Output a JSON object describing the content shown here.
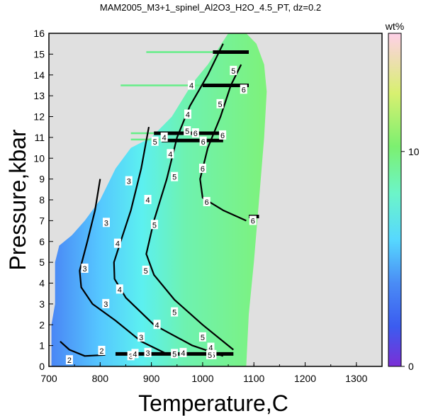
{
  "chart_data": {
    "type": "heatmap",
    "title": "MAM2005_M3+1_spinel_Al2O3_H2O_4.5_PT, dz=0.2",
    "xlabel": "Temperature,C",
    "ylabel": "Pressure,kbar",
    "xlim": [
      700,
      1350
    ],
    "ylim": [
      0,
      16
    ],
    "xticks": [
      700,
      800,
      900,
      1000,
      1100,
      1200,
      1300
    ],
    "yticks": [
      0,
      1,
      2,
      3,
      4,
      5,
      6,
      7,
      8,
      9,
      10,
      11,
      12,
      13,
      14,
      15,
      16
    ],
    "grid": false,
    "background": "#e0e0e0",
    "colorbar": {
      "label": "wt%",
      "min": 0,
      "max": 15.5,
      "ticks": [
        0,
        10
      ],
      "colors": [
        "#7b2fd6",
        "#3b5cf0",
        "#4a8cf5",
        "#56d8ff",
        "#6cf5c8",
        "#7cf070",
        "#d8f070",
        "#ffd0e8"
      ]
    },
    "field_boundary": [
      [
        770,
        0.0
      ],
      [
        1085,
        0.0
      ],
      [
        1090,
        2.5
      ],
      [
        1100,
        5.0
      ],
      [
        1110,
        8.0
      ],
      [
        1120,
        11.0
      ],
      [
        1125,
        13.2
      ],
      [
        1120,
        14.5
      ],
      [
        1105,
        15.5
      ],
      [
        1085,
        16.0
      ],
      [
        1050,
        16.0
      ],
      [
        1010,
        14.5
      ],
      [
        980,
        13.6
      ],
      [
        940,
        12.0
      ],
      [
        900,
        11.0
      ],
      [
        860,
        10.5
      ],
      [
        830,
        9.5
      ],
      [
        800,
        8.0
      ],
      [
        770,
        7.0
      ],
      [
        745,
        6.3
      ],
      [
        720,
        5.8
      ],
      [
        712,
        5.0
      ],
      [
        712,
        3.0
      ],
      [
        705,
        2.0
      ],
      [
        705,
        0.0
      ]
    ],
    "contours": [
      {
        "level": 2,
        "points": [
          [
            722,
            1.2
          ],
          [
            740,
            0.8
          ],
          [
            770,
            0.5
          ],
          [
            810,
            0.55
          ]
        ]
      },
      {
        "level": 3,
        "points": [
          [
            800,
            9.0
          ],
          [
            790,
            7.5
          ],
          [
            775,
            6.0
          ],
          [
            760,
            4.6
          ],
          [
            763,
            3.8
          ],
          [
            785,
            3.0
          ],
          [
            830,
            2.2
          ],
          [
            880,
            1.2
          ],
          [
            930,
            0.6
          ]
        ]
      },
      {
        "level": 4,
        "points": [
          [
            895,
            11.5
          ],
          [
            880,
            9.5
          ],
          [
            860,
            7.5
          ],
          [
            840,
            6.0
          ],
          [
            827,
            5.0
          ],
          [
            828,
            4.2
          ],
          [
            850,
            3.3
          ],
          [
            905,
            2.0
          ],
          [
            980,
            1.0
          ],
          [
            1040,
            0.5
          ]
        ]
      },
      {
        "level": 5,
        "points": [
          [
            1040,
            15.5
          ],
          [
            1010,
            14.0
          ],
          [
            975,
            12.5
          ],
          [
            950,
            11.0
          ],
          [
            930,
            9.0
          ],
          [
            905,
            7.0
          ],
          [
            890,
            5.4
          ],
          [
            905,
            4.4
          ],
          [
            945,
            3.2
          ],
          [
            1000,
            2.0
          ],
          [
            1060,
            0.8
          ]
        ]
      },
      {
        "level": 6,
        "points": [
          [
            1075,
            14.5
          ],
          [
            1055,
            13.5
          ],
          [
            1035,
            12.0
          ],
          [
            1010,
            10.5
          ],
          [
            995,
            9.0
          ],
          [
            1000,
            8.1
          ],
          [
            1040,
            7.5
          ],
          [
            1085,
            7.0
          ]
        ]
      }
    ],
    "contour_labels": [
      {
        "text": "2",
        "x": 740,
        "y": 0.3
      },
      {
        "text": "2",
        "x": 803,
        "y": 0.75
      },
      {
        "text": "3",
        "x": 770,
        "y": 4.7
      },
      {
        "text": "3",
        "x": 812,
        "y": 6.9
      },
      {
        "text": "3",
        "x": 856,
        "y": 8.9
      },
      {
        "text": "3",
        "x": 811,
        "y": 3.0
      },
      {
        "text": "3",
        "x": 880,
        "y": 1.4
      },
      {
        "text": "3",
        "x": 893,
        "y": 0.65
      },
      {
        "text": "3",
        "x": 860,
        "y": 0.5
      },
      {
        "text": "4",
        "x": 834,
        "y": 5.9
      },
      {
        "text": "4",
        "x": 838,
        "y": 3.7
      },
      {
        "text": "4",
        "x": 893,
        "y": 8.0
      },
      {
        "text": "4",
        "x": 937,
        "y": 10.2
      },
      {
        "text": "4",
        "x": 868,
        "y": 0.6
      },
      {
        "text": "4",
        "x": 911,
        "y": 2.0
      },
      {
        "text": "4",
        "x": 962,
        "y": 0.65
      },
      {
        "text": "4",
        "x": 1016,
        "y": 0.9
      },
      {
        "text": "4",
        "x": 925,
        "y": 11.0
      },
      {
        "text": "4",
        "x": 971,
        "y": 12.1
      },
      {
        "text": "4",
        "x": 978,
        "y": 13.5
      },
      {
        "text": "5",
        "x": 889,
        "y": 4.6
      },
      {
        "text": "5",
        "x": 906,
        "y": 6.8
      },
      {
        "text": "5",
        "x": 945,
        "y": 9.1
      },
      {
        "text": "5",
        "x": 970,
        "y": 11.3
      },
      {
        "text": "5",
        "x": 945,
        "y": 2.6
      },
      {
        "text": "5",
        "x": 1000,
        "y": 1.4
      },
      {
        "text": "5",
        "x": 1020,
        "y": 0.55
      },
      {
        "text": "5",
        "x": 1034,
        "y": 12.6
      },
      {
        "text": "5",
        "x": 1060,
        "y": 14.2
      },
      {
        "text": "5",
        "x": 907,
        "y": 10.8
      },
      {
        "text": "5",
        "x": 945,
        "y": 0.6
      },
      {
        "text": "5",
        "x": 1014,
        "y": 0.55
      },
      {
        "text": "6",
        "x": 1000,
        "y": 9.5
      },
      {
        "text": "6",
        "x": 1008,
        "y": 7.9
      },
      {
        "text": "6",
        "x": 1039,
        "y": 11.1
      },
      {
        "text": "6",
        "x": 1080,
        "y": 13.3
      },
      {
        "text": "6",
        "x": 1098,
        "y": 7.0
      },
      {
        "text": "6",
        "x": 986,
        "y": 11.2
      },
      {
        "text": "6",
        "x": 1001,
        "y": 10.8
      }
    ],
    "bold_segments": [
      {
        "x": [
          830,
          1060
        ],
        "y": 0.6
      },
      {
        "x": [
          920,
          1040
        ],
        "y": 10.85
      },
      {
        "x": [
          905,
          1040
        ],
        "y": 11.2
      },
      {
        "x": [
          1000,
          1090
        ],
        "y": 13.5
      },
      {
        "x": [
          1020,
          1090
        ],
        "y": 15.1
      },
      {
        "x": [
          1090,
          1110
        ],
        "y": 7.2
      }
    ],
    "stray_lines": [
      {
        "x": [
          890,
          1020
        ],
        "y": 15.1
      },
      {
        "x": [
          840,
          1000
        ],
        "y": 13.5
      },
      {
        "x": [
          860,
          920
        ],
        "y": 11.2
      },
      {
        "x": [
          860,
          920
        ],
        "y": 10.9
      }
    ]
  }
}
